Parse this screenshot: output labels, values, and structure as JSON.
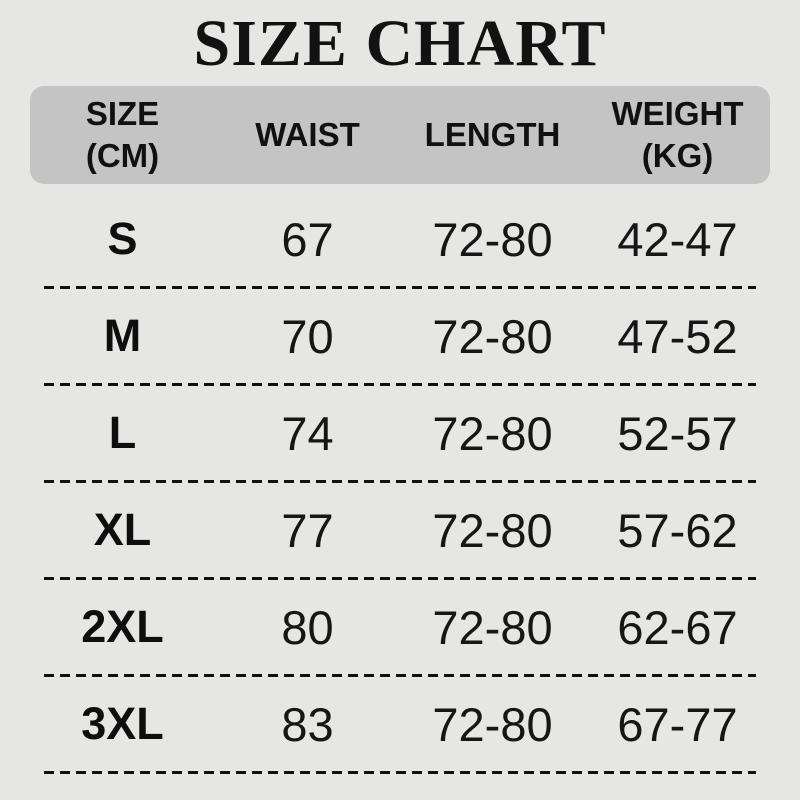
{
  "title": "SIZE CHART",
  "colors": {
    "page_background": "#e6e7e5",
    "header_background": "#c4c4c4",
    "text": "#141414",
    "divider": "#111111"
  },
  "header_display": [
    [
      "SIZE",
      "(CM)"
    ],
    [
      "WAIST"
    ],
    [
      "LENGTH"
    ],
    [
      "WEIGHT",
      "(KG)"
    ]
  ],
  "chart_data": {
    "type": "table",
    "title": "SIZE CHART",
    "columns": [
      "SIZE (CM)",
      "WAIST",
      "LENGTH",
      "WEIGHT (KG)"
    ],
    "rows": [
      [
        "S",
        "67",
        "72-80",
        "42-47"
      ],
      [
        "M",
        "70",
        "72-80",
        "47-52"
      ],
      [
        "L",
        "74",
        "72-80",
        "52-57"
      ],
      [
        "XL",
        "77",
        "72-80",
        "57-62"
      ],
      [
        "2XL",
        "80",
        "72-80",
        "62-67"
      ],
      [
        "3XL",
        "83",
        "72-80",
        "67-77"
      ]
    ]
  }
}
